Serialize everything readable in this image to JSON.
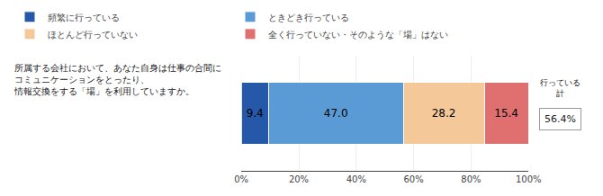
{
  "chart_data": {
    "type": "bar",
    "orientation": "horizontal",
    "stacked": true,
    "data_labels": true,
    "grid": true,
    "legend": "top",
    "tick_labels": "x",
    "categories": [
      null
    ],
    "series": [
      {
        "name": "頻繁に行っている",
        "color": "#2558A8",
        "values": [
          9.4
        ],
        "value_labels": [
          "9.4"
        ]
      },
      {
        "name": "ときどき行っている",
        "color": "#5B9BD5",
        "values": [
          47.0
        ],
        "value_labels": [
          "47.0"
        ]
      },
      {
        "name": "ほとんど行っていない",
        "color": "#F5C89A",
        "values": [
          28.2
        ],
        "value_labels": [
          "28.2"
        ]
      },
      {
        "name": "全く行っていない・そのような「場」はない",
        "color": "#E07070",
        "values": [
          15.4
        ],
        "value_labels": [
          "15.4"
        ]
      }
    ],
    "xlim": [
      0,
      100
    ],
    "xticks": [
      {
        "value": 0,
        "label": "0%"
      },
      {
        "value": 20,
        "label": "20%"
      },
      {
        "value": 40,
        "label": "40%"
      },
      {
        "value": 60,
        "label": "60%"
      },
      {
        "value": 80,
        "label": "80%"
      },
      {
        "value": 100,
        "label": "100%"
      }
    ],
    "annotations": [
      {
        "text": "所属する会社において、あなた自身は仕事の合間に\nコミュニケーションをとったり、\n情報交換をする「場」を利用していますか。"
      },
      {
        "text": "行っている\n計"
      },
      {
        "text": "56.4%"
      }
    ]
  }
}
